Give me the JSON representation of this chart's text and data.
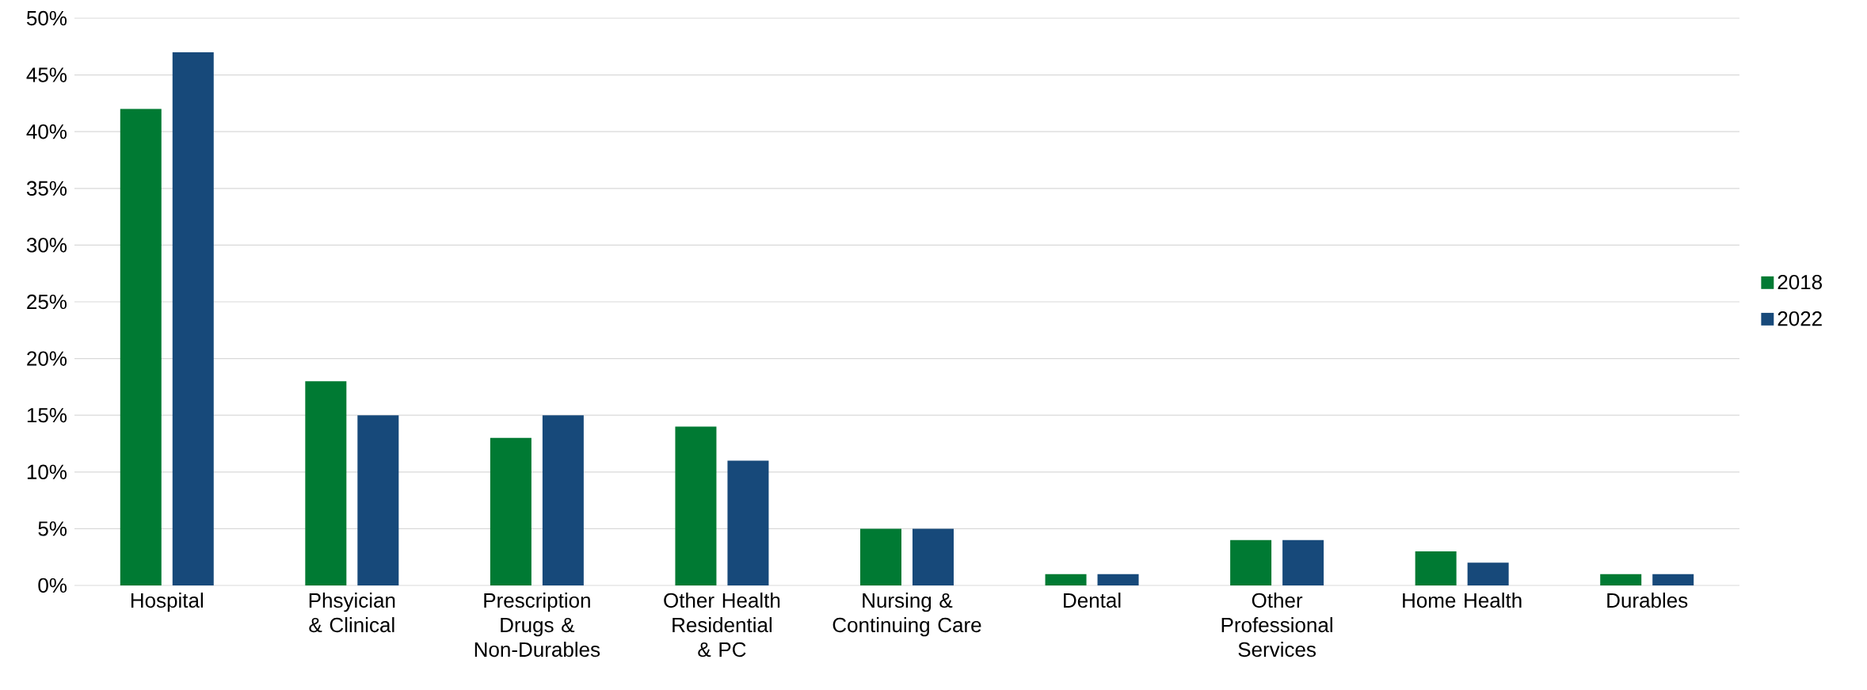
{
  "chart_data": {
    "type": "bar",
    "categories": [
      "Hospital",
      "Phsyician & Clinical",
      "Prescription Drugs & Non-Durables",
      "Other Health Residential & PC",
      "Nursing & Continuing Care",
      "Dental",
      "Other Professional Services",
      "Home Health",
      "Durables"
    ],
    "series": [
      {
        "name": "2018",
        "color": "#007a33",
        "values": [
          42,
          18,
          13,
          14,
          5,
          1,
          4,
          3,
          1
        ]
      },
      {
        "name": "2022",
        "color": "#17497a",
        "values": [
          47,
          15,
          15,
          11,
          5,
          1,
          4,
          2,
          1
        ]
      }
    ],
    "ylim": [
      0,
      50
    ],
    "yticks": [
      {
        "value": 0,
        "label": "0%"
      },
      {
        "value": 5,
        "label": "5%"
      },
      {
        "value": 10,
        "label": "10%"
      },
      {
        "value": 15,
        "label": "15%"
      },
      {
        "value": 20,
        "label": "20%"
      },
      {
        "value": 25,
        "label": "25%"
      },
      {
        "value": 30,
        "label": "30%"
      },
      {
        "value": 35,
        "label": "35%"
      },
      {
        "value": 40,
        "label": "40%"
      },
      {
        "value": 45,
        "label": "45%"
      },
      {
        "value": 50,
        "label": "50%"
      }
    ],
    "grid": "y",
    "legend": "right"
  }
}
